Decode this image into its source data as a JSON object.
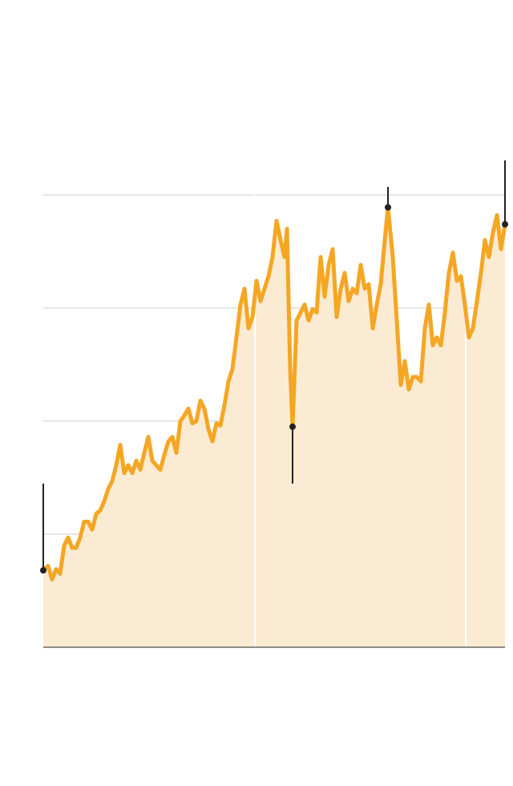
{
  "chart_data": {
    "type": "line",
    "x": [
      0,
      6,
      11,
      16,
      21,
      26,
      31,
      36,
      41,
      46,
      51,
      56,
      61,
      66,
      71,
      76,
      81,
      86,
      91,
      96,
      101,
      106,
      111,
      116,
      121,
      126,
      131,
      136,
      141,
      146,
      151,
      156,
      161,
      166,
      171,
      176,
      181,
      186,
      191,
      196,
      201,
      206,
      211,
      216,
      221,
      226,
      231,
      236,
      241,
      246,
      251,
      256,
      261,
      266,
      271,
      276,
      281,
      286,
      291,
      296,
      301,
      304,
      308,
      311,
      316,
      321,
      326,
      331,
      336,
      341,
      346,
      351,
      356,
      361,
      366,
      371,
      376,
      381,
      386,
      391,
      396,
      401,
      406,
      411,
      416,
      421,
      426,
      430,
      436,
      441,
      446,
      451,
      456,
      461,
      466,
      471,
      476,
      481,
      486,
      491,
      496,
      501,
      506,
      511,
      516,
      521,
      526,
      531,
      536,
      541,
      546,
      551,
      556,
      561,
      566,
      571,
      576
    ],
    "series": [
      {
        "color": "#f5a623",
        "fill": "#fcebd3",
        "values": [
          0.68,
          0.72,
          0.6,
          0.69,
          0.65,
          0.9,
          0.97,
          0.88,
          0.88,
          0.97,
          1.11,
          1.11,
          1.04,
          1.18,
          1.21,
          1.29,
          1.4,
          1.47,
          1.61,
          1.79,
          1.54,
          1.61,
          1.54,
          1.65,
          1.57,
          1.72,
          1.86,
          1.65,
          1.61,
          1.57,
          1.7,
          1.82,
          1.86,
          1.72,
          2.0,
          2.05,
          2.11,
          1.98,
          2.0,
          2.18,
          2.11,
          1.93,
          1.82,
          1.98,
          1.96,
          2.14,
          2.35,
          2.46,
          2.74,
          3.03,
          3.17,
          2.82,
          2.92,
          3.24,
          3.06,
          3.17,
          3.28,
          3.45,
          3.77,
          3.6,
          3.45,
          3.7,
          2.46,
          1.95,
          2.89,
          2.96,
          3.03,
          2.89,
          2.99,
          2.96,
          3.45,
          3.1,
          3.38,
          3.52,
          2.92,
          3.17,
          3.31,
          3.06,
          3.17,
          3.13,
          3.38,
          3.17,
          3.21,
          2.82,
          3.03,
          3.21,
          3.6,
          3.89,
          3.45,
          2.89,
          2.32,
          2.53,
          2.28,
          2.39,
          2.39,
          2.35,
          2.82,
          3.03,
          2.67,
          2.74,
          2.67,
          2.96,
          3.31,
          3.49,
          3.24,
          3.28,
          3.03,
          2.74,
          2.82,
          3.06,
          3.31,
          3.6,
          3.45,
          3.67,
          3.82,
          3.52,
          3.74
        ]
      }
    ],
    "markers": [
      0,
      63,
      87,
      116
    ],
    "xlim": [
      0,
      576
    ],
    "ylim": [
      0,
      4
    ],
    "yticks": [
      0,
      1,
      2,
      3,
      4
    ],
    "grid": true
  }
}
